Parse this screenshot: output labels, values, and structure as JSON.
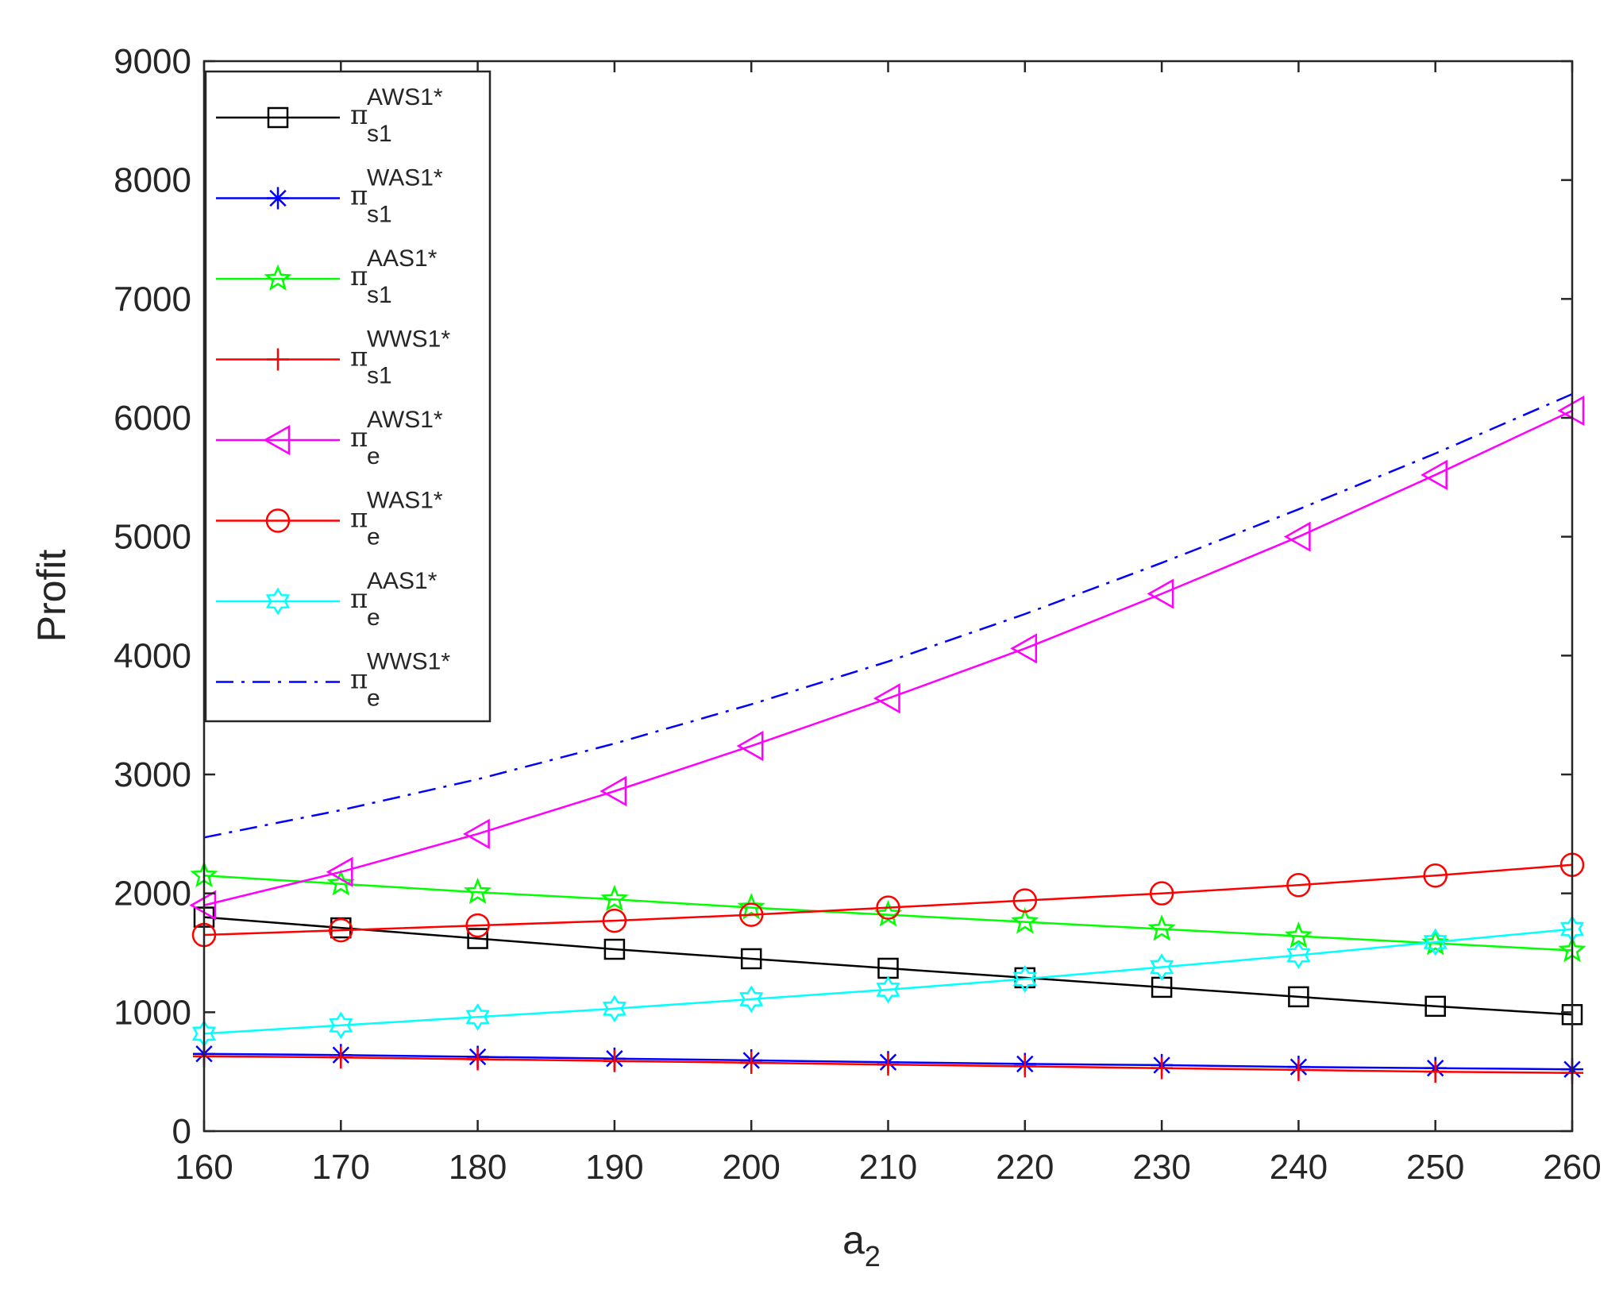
{
  "chart_data": {
    "type": "line",
    "title": "",
    "xlabel": "a",
    "xlabel_sub": "2",
    "ylabel": "Profit",
    "xlim": [
      160,
      260
    ],
    "ylim": [
      0,
      9000
    ],
    "x_ticks": [
      160,
      170,
      180,
      190,
      200,
      210,
      220,
      230,
      240,
      250,
      260
    ],
    "y_ticks": [
      0,
      1000,
      2000,
      3000,
      4000,
      5000,
      6000,
      7000,
      8000,
      9000
    ],
    "grid": false,
    "legend_position": "top-left",
    "x": [
      160,
      170,
      180,
      190,
      200,
      210,
      220,
      230,
      240,
      250,
      260
    ],
    "series": [
      {
        "symbol": "π",
        "sup": "AWS1*",
        "sub": "s1",
        "color": "#000000",
        "marker": "square",
        "dash": "solid",
        "values": [
          1800,
          1710,
          1620,
          1530,
          1450,
          1370,
          1290,
          1210,
          1130,
          1050,
          980
        ]
      },
      {
        "symbol": "π",
        "sup": "WAS1*",
        "sub": "s1",
        "color": "#0000ff",
        "marker": "asterisk",
        "dash": "solid",
        "values": [
          650,
          640,
          625,
          610,
          595,
          580,
          565,
          555,
          540,
          530,
          520
        ]
      },
      {
        "symbol": "π",
        "sup": "AAS1*",
        "sub": "s1",
        "color": "#00ff00",
        "marker": "pentagram",
        "dash": "solid",
        "values": [
          2150,
          2080,
          2010,
          1950,
          1880,
          1820,
          1760,
          1700,
          1640,
          1580,
          1520
        ]
      },
      {
        "symbol": "π",
        "sup": "WWS1*",
        "sub": "s1",
        "color": "#ff0000",
        "marker": "plus",
        "dash": "solid",
        "values": [
          630,
          620,
          605,
          590,
          575,
          560,
          545,
          530,
          515,
          500,
          490
        ]
      },
      {
        "symbol": "π",
        "sup": "AWS1*",
        "sub": "e",
        "color": "#ff00ff",
        "marker": "triangle-left",
        "dash": "solid",
        "values": [
          1900,
          2180,
          2500,
          2860,
          3240,
          3640,
          4060,
          4520,
          5000,
          5520,
          6060
        ]
      },
      {
        "symbol": "π",
        "sup": "WAS1*",
        "sub": "e",
        "color": "#ff0000",
        "marker": "circle",
        "dash": "solid",
        "values": [
          1650,
          1690,
          1730,
          1770,
          1820,
          1880,
          1940,
          2000,
          2070,
          2150,
          2240
        ]
      },
      {
        "symbol": "π",
        "sup": "AAS1*",
        "sub": "e",
        "color": "#00ffff",
        "marker": "hexagram",
        "dash": "solid",
        "values": [
          820,
          890,
          960,
          1030,
          1110,
          1190,
          1280,
          1380,
          1480,
          1590,
          1700
        ]
      },
      {
        "symbol": "π",
        "sup": "WWS1*",
        "sub": "e",
        "color": "#0000ff",
        "marker": "none",
        "dash": "dashdot",
        "values": [
          2470,
          2700,
          2960,
          3260,
          3590,
          3950,
          4350,
          4780,
          5230,
          5700,
          6200
        ]
      }
    ]
  }
}
